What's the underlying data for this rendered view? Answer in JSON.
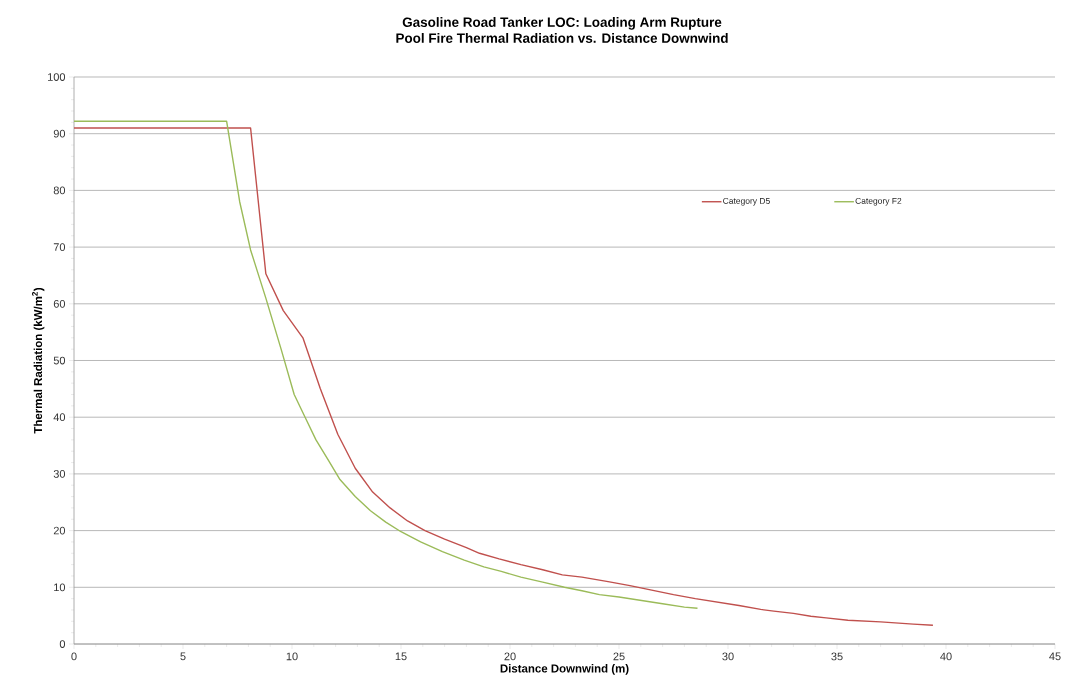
{
  "chart_data": {
    "type": "line",
    "title": "Gasoline Road Tanker LOC: Loading Arm Rupture\nPool Fire Thermal Radiation vs. Distance Downwind",
    "xlabel": "Distance Downwind (m)",
    "ylabel": "Thermal Radiation (kW/m$^{2}$)",
    "xlim": [
      0,
      45
    ],
    "xticks": [
      0,
      5,
      10,
      15,
      20,
      25,
      30,
      35,
      40,
      45
    ],
    "ylim": [
      0,
      100
    ],
    "yticks": [
      0,
      10,
      20,
      30,
      40,
      50,
      60,
      70,
      80,
      90,
      100
    ],
    "grid": "y",
    "legend": "right",
    "marker": "none",
    "line_style": "solid",
    "series": [
      {
        "name": "Category D5",
        "color": "#c0504d",
        "x": [
          0,
          8.1,
          8.8,
          9.6,
          10.5,
          11.3,
          12.1,
          12.9,
          13.7,
          14.5,
          15.3,
          16.1,
          17,
          18,
          18.6,
          19.5,
          20.5,
          21.5,
          22.4,
          23.3,
          24.5,
          25.5,
          26.5,
          27.5,
          28.5,
          29.5,
          30.5,
          31.5,
          32.1,
          33,
          33.8,
          34.5,
          35.5,
          37,
          38.5,
          39.4
        ],
        "values": [
          91,
          91,
          65.3,
          58.8,
          54,
          45,
          37,
          31,
          26.8,
          24,
          21.7,
          20,
          18.5,
          17,
          16,
          15,
          14,
          13.1,
          12.2,
          11.8,
          11,
          10.3,
          9.5,
          8.7,
          8,
          7.4,
          6.8,
          6.1,
          5.8,
          5.4,
          4.9,
          4.6,
          4.2,
          3.9,
          3.5,
          3.3
        ]
      },
      {
        "name": "Category F2",
        "color": "#9bbb59",
        "x": [
          0,
          7.0,
          7.6,
          8.1,
          8.8,
          9.5,
          10.1,
          10.6,
          11.1,
          11.7,
          12.2,
          12.9,
          13.6,
          14.3,
          15.0,
          15.9,
          16.9,
          17.9,
          18.8,
          19.6,
          20.5,
          21.5,
          22.5,
          23.3,
          24.1,
          25,
          26,
          27,
          28,
          28.6
        ],
        "values": [
          92.2,
          92.2,
          78,
          69.5,
          61,
          52,
          44,
          40,
          36,
          32.2,
          29,
          26,
          23.5,
          21.5,
          19.8,
          18,
          16.3,
          14.8,
          13.6,
          12.8,
          11.8,
          10.9,
          10,
          9.4,
          8.7,
          8.3,
          7.7,
          7.1,
          6.5,
          6.3
        ]
      }
    ]
  }
}
